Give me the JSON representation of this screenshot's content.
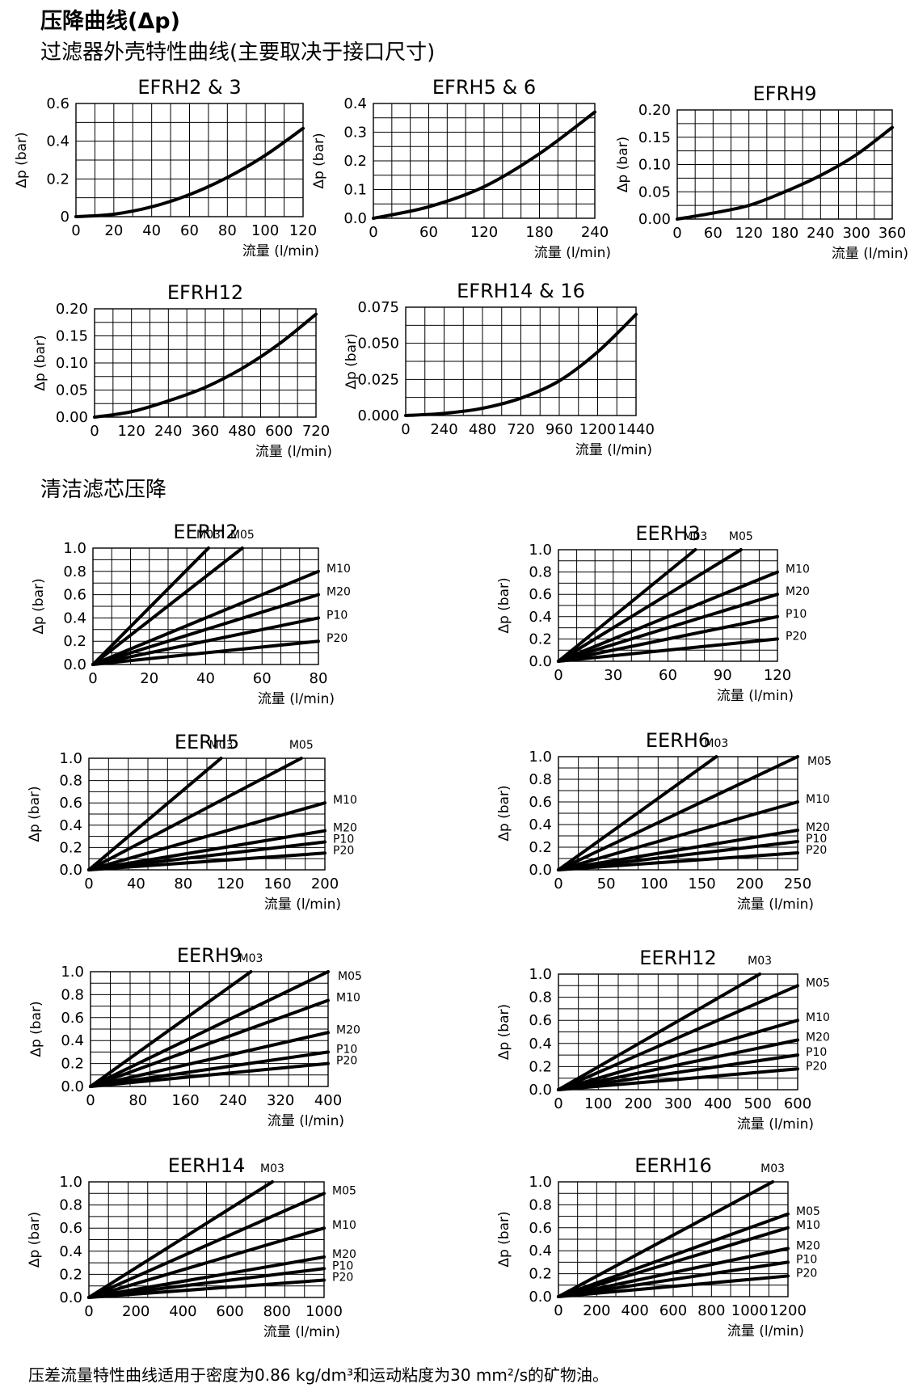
{
  "page": {
    "title": "压降曲线(Δp)",
    "section1_title": "过滤器外壳特性曲线(主要取决于接口尺寸)",
    "section2_title": "清洁滤芯压降",
    "footnote": "压差流量特性曲线适用于密度为0.86 kg/dm³和运动粘度为30 mm²/s的矿物油。"
  },
  "chart_data": [
    {
      "id": "efrh2-3",
      "type": "line",
      "title": "EFRH2 & 3",
      "xlabel": "流量 (l/min)",
      "ylabel": "Δp (bar)",
      "xlim": [
        0,
        120
      ],
      "ylim": [
        0,
        0.6
      ],
      "xticks": [
        "0",
        "20",
        "40",
        "60",
        "80",
        "100",
        "120"
      ],
      "yticks": [
        "0",
        "0.2",
        "0.4",
        "0.6"
      ],
      "series": [
        {
          "name": "",
          "x": [
            0,
            20,
            40,
            60,
            80,
            100,
            120
          ],
          "y": [
            0,
            0.013,
            0.052,
            0.117,
            0.208,
            0.325,
            0.468
          ]
        }
      ]
    },
    {
      "id": "efrh5-6",
      "type": "line",
      "title": "EFRH5 & 6",
      "xlabel": "流量 (l/min)",
      "ylabel": "Δp (bar)",
      "xlim": [
        0,
        240
      ],
      "ylim": [
        0,
        0.4
      ],
      "xticks": [
        "0",
        "60",
        "120",
        "180",
        "240"
      ],
      "yticks": [
        "0.0",
        "0.1",
        "0.2",
        "0.3",
        "0.4"
      ],
      "series": [
        {
          "name": "",
          "x": [
            0,
            60,
            120,
            180,
            240
          ],
          "y": [
            0,
            0.04,
            0.11,
            0.225,
            0.37
          ]
        }
      ]
    },
    {
      "id": "efrh9",
      "type": "line",
      "title": "EFRH9",
      "xlabel": "流量 (l/min)",
      "ylabel": "Δp (bar)",
      "xlim": [
        0,
        360
      ],
      "ylim": [
        0,
        0.2
      ],
      "xticks": [
        "0",
        "60",
        "120",
        "180",
        "240",
        "300",
        "360"
      ],
      "yticks": [
        "0.00",
        "0.05",
        "0.10",
        "0.15",
        "0.20"
      ],
      "series": [
        {
          "name": "",
          "x": [
            0,
            60,
            120,
            180,
            240,
            300,
            360
          ],
          "y": [
            0,
            0.011,
            0.025,
            0.05,
            0.08,
            0.118,
            0.168
          ]
        }
      ]
    },
    {
      "id": "efrh12",
      "type": "line",
      "title": "EFRH12",
      "xlabel": "流量 (l/min)",
      "ylabel": "Δp (bar)",
      "xlim": [
        0,
        720
      ],
      "ylim": [
        0,
        0.2
      ],
      "xticks": [
        "0",
        "120",
        "240",
        "360",
        "480",
        "600",
        "720"
      ],
      "yticks": [
        "0.00",
        "0.05",
        "0.10",
        "0.15",
        "0.20"
      ],
      "series": [
        {
          "name": "",
          "x": [
            0,
            120,
            240,
            360,
            480,
            600,
            720
          ],
          "y": [
            0,
            0.01,
            0.03,
            0.055,
            0.09,
            0.135,
            0.19
          ]
        }
      ]
    },
    {
      "id": "efrh14-16",
      "type": "line",
      "title": "EFRH14 & 16",
      "xlabel": "流量 (l/min)",
      "ylabel": "Δp (bar)",
      "xlim": [
        0,
        1440
      ],
      "ylim": [
        0,
        0.075
      ],
      "xticks": [
        "0",
        "240",
        "480",
        "720",
        "960",
        "1200",
        "1440"
      ],
      "yticks": [
        "0.000",
        "0.025",
        "0.050",
        "0.075"
      ],
      "series": [
        {
          "name": "",
          "x": [
            0,
            240,
            480,
            720,
            960,
            1200,
            1440
          ],
          "y": [
            0,
            0.0015,
            0.005,
            0.012,
            0.024,
            0.044,
            0.07
          ]
        }
      ]
    },
    {
      "id": "eerh2",
      "type": "line",
      "title": "EERH2",
      "xlabel": "流量 (l/min)",
      "ylabel": "Δp (bar)",
      "xlim": [
        0,
        80
      ],
      "ylim": [
        0,
        1.0
      ],
      "xticks": [
        "0",
        "20",
        "40",
        "60",
        "80"
      ],
      "yticks": [
        "0.0",
        "0.2",
        "0.4",
        "0.6",
        "0.8",
        "1.0"
      ],
      "series": [
        {
          "name": "M03",
          "x": [
            0,
            41
          ],
          "y": [
            0,
            1.0
          ]
        },
        {
          "name": "M05",
          "x": [
            0,
            53
          ],
          "y": [
            0,
            1.0
          ]
        },
        {
          "name": "M10",
          "x": [
            0,
            80
          ],
          "y": [
            0,
            0.8
          ]
        },
        {
          "name": "M20",
          "x": [
            0,
            80
          ],
          "y": [
            0,
            0.6
          ]
        },
        {
          "name": "P10",
          "x": [
            0,
            80
          ],
          "y": [
            0,
            0.4
          ]
        },
        {
          "name": "P20",
          "x": [
            0,
            80
          ],
          "y": [
            0,
            0.2
          ]
        }
      ]
    },
    {
      "id": "eerh3",
      "type": "line",
      "title": "EERH3",
      "xlabel": "流量 (l/min)",
      "ylabel": "Δp (bar)",
      "xlim": [
        0,
        120
      ],
      "ylim": [
        0,
        1.0
      ],
      "xticks": [
        "0",
        "30",
        "60",
        "90",
        "120"
      ],
      "yticks": [
        "0.0",
        "0.2",
        "0.4",
        "0.6",
        "0.8",
        "1.0"
      ],
      "series": [
        {
          "name": "M03",
          "x": [
            0,
            75
          ],
          "y": [
            0,
            1.0
          ]
        },
        {
          "name": "M05",
          "x": [
            0,
            100
          ],
          "y": [
            0,
            1.0
          ]
        },
        {
          "name": "M10",
          "x": [
            0,
            120
          ],
          "y": [
            0,
            0.8
          ]
        },
        {
          "name": "M20",
          "x": [
            0,
            120
          ],
          "y": [
            0,
            0.6
          ]
        },
        {
          "name": "P10",
          "x": [
            0,
            120
          ],
          "y": [
            0,
            0.4
          ]
        },
        {
          "name": "P20",
          "x": [
            0,
            120
          ],
          "y": [
            0,
            0.2
          ]
        }
      ]
    },
    {
      "id": "eerh5",
      "type": "line",
      "title": "EERH5",
      "xlabel": "流量 (l/min)",
      "ylabel": "Δp (bar)",
      "xlim": [
        0,
        200
      ],
      "ylim": [
        0,
        1.0
      ],
      "xticks": [
        "0",
        "40",
        "80",
        "120",
        "160",
        "200"
      ],
      "yticks": [
        "0.0",
        "0.2",
        "0.4",
        "0.6",
        "0.8",
        "1.0"
      ],
      "series": [
        {
          "name": "M03",
          "x": [
            0,
            112
          ],
          "y": [
            0,
            1.0
          ]
        },
        {
          "name": "M05",
          "x": [
            0,
            180
          ],
          "y": [
            0,
            1.0
          ]
        },
        {
          "name": "M10",
          "x": [
            0,
            200
          ],
          "y": [
            0,
            0.6
          ]
        },
        {
          "name": "M20",
          "x": [
            0,
            200
          ],
          "y": [
            0,
            0.35
          ]
        },
        {
          "name": "P10",
          "x": [
            0,
            200
          ],
          "y": [
            0,
            0.25
          ]
        },
        {
          "name": "P20",
          "x": [
            0,
            200
          ],
          "y": [
            0,
            0.15
          ]
        }
      ]
    },
    {
      "id": "eerh6",
      "type": "line",
      "title": "EERH6",
      "xlabel": "流量 (l/min)",
      "ylabel": "Δp (bar)",
      "xlim": [
        0,
        250
      ],
      "ylim": [
        0,
        1.0
      ],
      "xticks": [
        "0",
        "50",
        "100",
        "150",
        "200",
        "250"
      ],
      "yticks": [
        "0.0",
        "0.2",
        "0.4",
        "0.6",
        "0.8",
        "1.0"
      ],
      "series": [
        {
          "name": "M03",
          "x": [
            0,
            165
          ],
          "y": [
            0,
            1.0
          ]
        },
        {
          "name": "M05",
          "x": [
            0,
            250
          ],
          "y": [
            0,
            1.0
          ]
        },
        {
          "name": "M10",
          "x": [
            0,
            250
          ],
          "y": [
            0,
            0.6
          ]
        },
        {
          "name": "M20",
          "x": [
            0,
            250
          ],
          "y": [
            0,
            0.35
          ]
        },
        {
          "name": "P10",
          "x": [
            0,
            250
          ],
          "y": [
            0,
            0.25
          ]
        },
        {
          "name": "P20",
          "x": [
            0,
            250
          ],
          "y": [
            0,
            0.15
          ]
        }
      ]
    },
    {
      "id": "eerh9",
      "type": "line",
      "title": "EERH9",
      "xlabel": "流量 (l/min)",
      "ylabel": "Δp (bar)",
      "xlim": [
        0,
        400
      ],
      "ylim": [
        0,
        1.0
      ],
      "xticks": [
        "0",
        "80",
        "160",
        "240",
        "320",
        "400"
      ],
      "yticks": [
        "0.0",
        "0.2",
        "0.4",
        "0.6",
        "0.8",
        "1.0"
      ],
      "series": [
        {
          "name": "M03",
          "x": [
            0,
            270
          ],
          "y": [
            0,
            1.0
          ]
        },
        {
          "name": "M05",
          "x": [
            0,
            400
          ],
          "y": [
            0,
            1.0
          ]
        },
        {
          "name": "M10",
          "x": [
            0,
            400
          ],
          "y": [
            0,
            0.75
          ]
        },
        {
          "name": "M20",
          "x": [
            0,
            400
          ],
          "y": [
            0,
            0.47
          ]
        },
        {
          "name": "P10",
          "x": [
            0,
            400
          ],
          "y": [
            0,
            0.3
          ]
        },
        {
          "name": "P20",
          "x": [
            0,
            400
          ],
          "y": [
            0,
            0.2
          ]
        }
      ]
    },
    {
      "id": "eerh12",
      "type": "line",
      "title": "EERH12",
      "xlabel": "流量 (l/min)",
      "ylabel": "Δp (bar)",
      "xlim": [
        0,
        600
      ],
      "ylim": [
        0,
        1.0
      ],
      "xticks": [
        "0",
        "100",
        "200",
        "300",
        "400",
        "500",
        "600"
      ],
      "yticks": [
        "0.0",
        "0.2",
        "0.4",
        "0.6",
        "0.8",
        "1.0"
      ],
      "series": [
        {
          "name": "M03",
          "x": [
            0,
            505
          ],
          "y": [
            0,
            1.0
          ]
        },
        {
          "name": "M05",
          "x": [
            0,
            600
          ],
          "y": [
            0,
            0.9
          ]
        },
        {
          "name": "M10",
          "x": [
            0,
            600
          ],
          "y": [
            0,
            0.6
          ]
        },
        {
          "name": "M20",
          "x": [
            0,
            600
          ],
          "y": [
            0,
            0.43
          ]
        },
        {
          "name": "P10",
          "x": [
            0,
            600
          ],
          "y": [
            0,
            0.3
          ]
        },
        {
          "name": "P20",
          "x": [
            0,
            600
          ],
          "y": [
            0,
            0.18
          ]
        }
      ]
    },
    {
      "id": "eerh14",
      "type": "line",
      "title": "EERH14",
      "xlabel": "流量 (l/min)",
      "ylabel": "Δp (bar)",
      "xlim": [
        0,
        1000
      ],
      "ylim": [
        0,
        1.0
      ],
      "xticks": [
        "0",
        "200",
        "400",
        "600",
        "800",
        "1000"
      ],
      "yticks": [
        "0.0",
        "0.2",
        "0.4",
        "0.6",
        "0.8",
        "1.0"
      ],
      "series": [
        {
          "name": "M03",
          "x": [
            0,
            780
          ],
          "y": [
            0,
            1.0
          ]
        },
        {
          "name": "M05",
          "x": [
            0,
            1000
          ],
          "y": [
            0,
            0.9
          ]
        },
        {
          "name": "M10",
          "x": [
            0,
            1000
          ],
          "y": [
            0,
            0.6
          ]
        },
        {
          "name": "M20",
          "x": [
            0,
            1000
          ],
          "y": [
            0,
            0.35
          ]
        },
        {
          "name": "P10",
          "x": [
            0,
            1000
          ],
          "y": [
            0,
            0.25
          ]
        },
        {
          "name": "P20",
          "x": [
            0,
            1000
          ],
          "y": [
            0,
            0.15
          ]
        }
      ]
    },
    {
      "id": "eerh16",
      "type": "line",
      "title": "EERH16",
      "xlabel": "流量 (l/min)",
      "ylabel": "Δp (bar)",
      "xlim": [
        0,
        1200
      ],
      "ylim": [
        0,
        1.0
      ],
      "xticks": [
        "0",
        "200",
        "400",
        "600",
        "800",
        "1000",
        "1200"
      ],
      "yticks": [
        "0.0",
        "0.2",
        "0.4",
        "0.6",
        "0.8",
        "1.0"
      ],
      "series": [
        {
          "name": "M03",
          "x": [
            0,
            1120
          ],
          "y": [
            0,
            1.0
          ]
        },
        {
          "name": "M05",
          "x": [
            0,
            1200
          ],
          "y": [
            0,
            0.72
          ]
        },
        {
          "name": "M10",
          "x": [
            0,
            1200
          ],
          "y": [
            0,
            0.6
          ]
        },
        {
          "name": "M20",
          "x": [
            0,
            1200
          ],
          "y": [
            0,
            0.42
          ]
        },
        {
          "name": "P10",
          "x": [
            0,
            1200
          ],
          "y": [
            0,
            0.3
          ]
        },
        {
          "name": "P20",
          "x": [
            0,
            1200
          ],
          "y": [
            0,
            0.18
          ]
        }
      ]
    }
  ]
}
